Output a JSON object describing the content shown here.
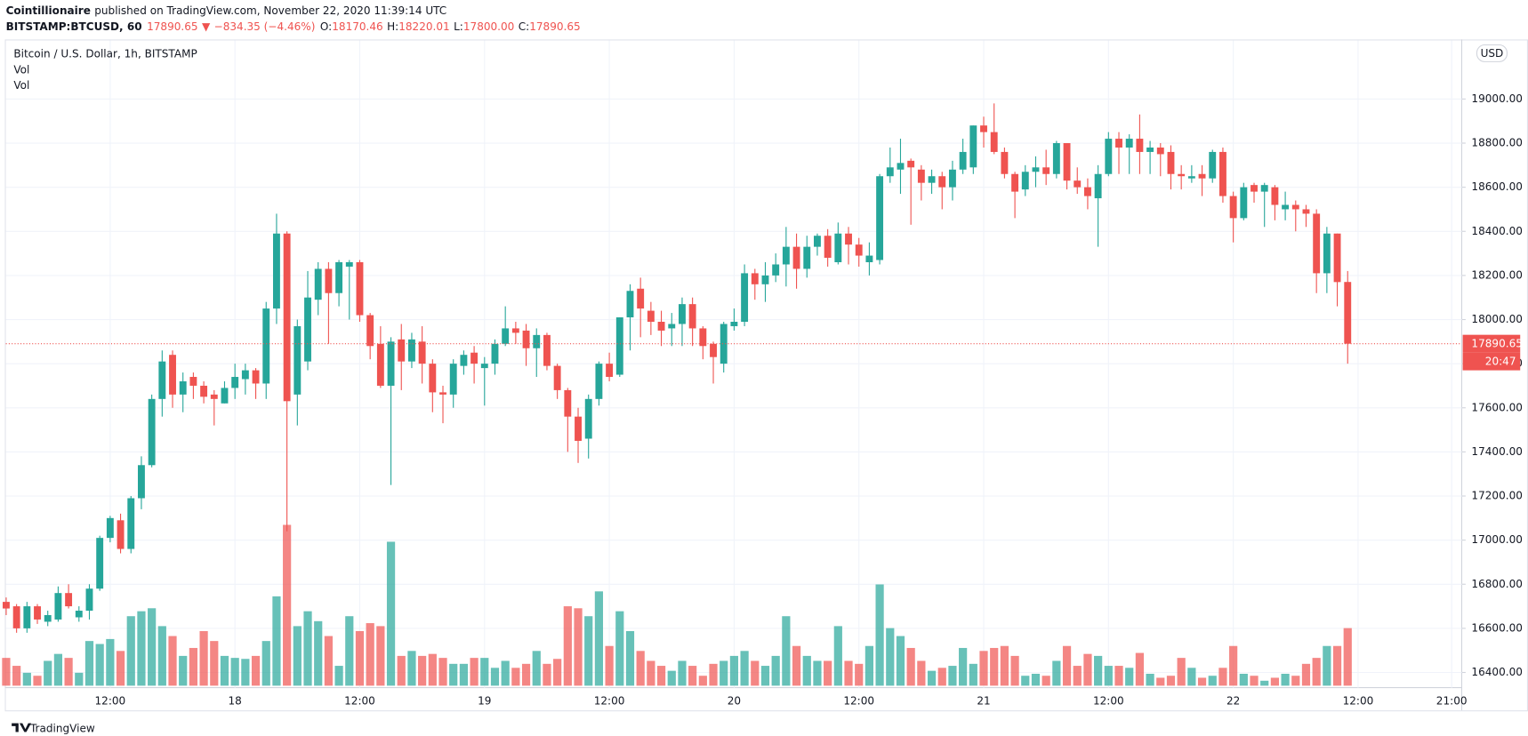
{
  "header": {
    "publisher": "Cointillionaire",
    "published": "published on TradingView.com, November 22, 2020 11:39:14 UTC",
    "symbol": "BITSTAMP:BTCUSD, 60",
    "last": "17890.65",
    "arrow": "▼",
    "change": "−834.35 (−4.46%)",
    "ohlc": [
      {
        "label": "O:",
        "value": "18170.46"
      },
      {
        "label": "H:",
        "value": "18220.01"
      },
      {
        "label": "L:",
        "value": "17800.00"
      },
      {
        "label": "C:",
        "value": "17890.65"
      }
    ]
  },
  "footer": "TradingView",
  "chart_data": {
    "type": "candlestick",
    "title": "Bitcoin / U.S. Dollar, 1h, BITSTAMP",
    "indicators": [
      "Vol",
      "Vol"
    ],
    "currency": "USD",
    "countdown": "20:47",
    "up_color": "#26a69a",
    "down_color": "#ef5350",
    "grid": true,
    "categories": [
      null,
      null,
      null,
      null,
      null,
      null,
      null,
      null,
      null,
      null,
      "12:00",
      null,
      null,
      null,
      null,
      null,
      null,
      null,
      null,
      null,
      null,
      null,
      "18",
      null,
      null,
      null,
      null,
      null,
      null,
      null,
      null,
      null,
      null,
      null,
      "12:00",
      null,
      null,
      null,
      null,
      null,
      null,
      null,
      null,
      null,
      null,
      null,
      "19",
      null,
      null,
      null,
      null,
      null,
      null,
      null,
      null,
      null,
      null,
      null,
      "12:00",
      null,
      null,
      null,
      null,
      null,
      null,
      null,
      null,
      null,
      null,
      null,
      "20",
      null,
      null,
      null,
      null,
      null,
      null,
      null,
      null,
      null,
      null,
      null,
      "12:00",
      null,
      null,
      null,
      null,
      null,
      null,
      null,
      null,
      null,
      null,
      null,
      "21",
      null,
      null,
      null,
      null,
      null,
      null,
      null,
      null,
      null,
      null,
      null,
      "12:00",
      null,
      null,
      null,
      null,
      null,
      null,
      null,
      null,
      null,
      null,
      null,
      "22",
      null,
      null,
      null,
      null,
      null,
      null,
      null,
      null,
      null,
      null,
      null,
      "12:00",
      null,
      null,
      null,
      null,
      null,
      null,
      null,
      null,
      "21:00"
    ],
    "open": [
      16720,
      16700,
      16600,
      16700,
      16630,
      16640,
      16760,
      16650,
      16680,
      16780,
      17010,
      17090,
      16960,
      17190,
      17340,
      17640,
      17840,
      17660,
      17740,
      17700,
      17660,
      17620,
      17690,
      17730,
      17770,
      17710,
      18050,
      18390,
      17660,
      17810,
      18090,
      18230,
      18120,
      18240,
      18260,
      18020,
      17890,
      17700,
      17910,
      17810,
      17900,
      17800,
      17670,
      17660,
      17790,
      17850,
      17780,
      17800,
      17890,
      17960,
      17950,
      17870,
      17930,
      17790,
      17680,
      17560,
      17460,
      17640,
      17800,
      17750,
      18010,
      18140,
      18040,
      17990,
      17960,
      17980,
      18070,
      17960,
      17890,
      17800,
      17970,
      17990,
      18210,
      18160,
      18200,
      18250,
      18330,
      18230,
      18330,
      18380,
      18260,
      18390,
      18340,
      18260,
      18270,
      18650,
      18680,
      18720,
      18680,
      18620,
      18650,
      18600,
      18680,
      18690,
      18880,
      18850,
      18760,
      18660,
      18590,
      18670,
      18690,
      18660,
      18800,
      18630,
      18600,
      18550,
      18660,
      18820,
      18780,
      18820,
      18760,
      18780,
      18760,
      18660,
      18640,
      18660,
      18640,
      18760,
      18560,
      18460,
      18610,
      18580,
      18600,
      18500,
      18520,
      18500,
      18480,
      18210,
      18390,
      18170.46,
      null,
      null,
      null,
      null,
      null,
      null,
      null,
      null,
      null,
      null
    ],
    "high": [
      16740,
      16710,
      16720,
      16710,
      16680,
      16790,
      16800,
      16700,
      16800,
      17020,
      17110,
      17120,
      17200,
      17380,
      17660,
      17860,
      17860,
      17760,
      17760,
      17720,
      17680,
      17720,
      17800,
      17800,
      17780,
      18080,
      18480,
      18400,
      18000,
      18220,
      18260,
      18260,
      18270,
      18270,
      18270,
      18030,
      17970,
      17920,
      17980,
      17940,
      17970,
      17820,
      17700,
      17820,
      17860,
      17880,
      17830,
      17910,
      18060,
      17990,
      17980,
      17960,
      17940,
      17800,
      17690,
      17600,
      17660,
      17810,
      17850,
      18010,
      18160,
      18190,
      18080,
      18040,
      18030,
      18100,
      18100,
      17970,
      17900,
      17990,
      18050,
      18250,
      18230,
      18260,
      18300,
      18420,
      18390,
      18380,
      18390,
      18410,
      18440,
      18420,
      18370,
      18350,
      18660,
      18780,
      18820,
      18730,
      18700,
      18680,
      18670,
      18720,
      18820,
      18880,
      18920,
      18980,
      18780,
      18670,
      18700,
      18740,
      18770,
      18810,
      18800,
      18690,
      18640,
      18700,
      18850,
      18850,
      18840,
      18930,
      18810,
      18800,
      18790,
      18700,
      18700,
      18700,
      18770,
      18780,
      18580,
      18620,
      18620,
      18620,
      18610,
      18580,
      18540,
      18520,
      18500,
      18420,
      18390,
      18220.01,
      null,
      null,
      null,
      null,
      null,
      null,
      null,
      null,
      null,
      null
    ],
    "low": [
      16660,
      16580,
      16580,
      16620,
      16610,
      16630,
      16690,
      16630,
      16640,
      16770,
      16990,
      16940,
      16940,
      17140,
      17330,
      17560,
      17600,
      17580,
      17640,
      17620,
      17520,
      17620,
      17640,
      17660,
      17640,
      17640,
      17980,
      17040,
      17520,
      17770,
      18020,
      17890,
      18060,
      18000,
      17990,
      17820,
      17690,
      17250,
      17680,
      17780,
      17710,
      17580,
      17530,
      17600,
      17750,
      17710,
      17610,
      17750,
      17880,
      17890,
      17790,
      17740,
      17770,
      17640,
      17400,
      17350,
      17370,
      17610,
      17720,
      17740,
      17860,
      17920,
      17930,
      17880,
      17880,
      17880,
      17880,
      17820,
      17710,
      17760,
      17950,
      17970,
      18090,
      18080,
      18170,
      18150,
      18140,
      18190,
      18290,
      18240,
      18250,
      18250,
      18240,
      18200,
      18250,
      18620,
      18570,
      18430,
      18540,
      18570,
      18500,
      18540,
      18660,
      18660,
      18780,
      18750,
      18640,
      18460,
      18560,
      18600,
      18610,
      18640,
      18590,
      18570,
      18500,
      18330,
      18650,
      18660,
      18660,
      18660,
      18660,
      18650,
      18590,
      18590,
      18620,
      18560,
      18620,
      18530,
      18350,
      18450,
      18530,
      18420,
      18450,
      18450,
      18400,
      18420,
      18120,
      18120,
      18060,
      17800,
      null,
      null,
      null,
      null,
      null,
      null,
      null,
      null,
      null,
      null
    ],
    "close": [
      16690,
      16600,
      16700,
      16640,
      16660,
      16760,
      16700,
      16680,
      16780,
      17010,
      17100,
      16960,
      17190,
      17340,
      17640,
      17810,
      17660,
      17720,
      17700,
      17650,
      17640,
      17690,
      17740,
      17770,
      17710,
      18050,
      18390,
      17630,
      17970,
      18100,
      18230,
      18120,
      18260,
      18260,
      18020,
      17880,
      17700,
      17900,
      17810,
      17910,
      17800,
      17670,
      17660,
      17800,
      17840,
      17800,
      17800,
      17890,
      17960,
      17940,
      17870,
      17930,
      17790,
      17680,
      17560,
      17450,
      17640,
      17800,
      17740,
      18010,
      18130,
      18050,
      17990,
      17950,
      17980,
      18070,
      17960,
      17880,
      17830,
      17980,
      17990,
      18210,
      18160,
      18200,
      18250,
      18330,
      18230,
      18330,
      18380,
      18280,
      18390,
      18340,
      18290,
      18290,
      18650,
      18690,
      18710,
      18690,
      18620,
      18650,
      18600,
      18680,
      18760,
      18880,
      18850,
      18760,
      18660,
      18580,
      18670,
      18690,
      18660,
      18800,
      18630,
      18600,
      18560,
      18660,
      18820,
      18780,
      18820,
      18760,
      18780,
      18750,
      18660,
      18650,
      18650,
      18640,
      18760,
      18560,
      18460,
      18600,
      18580,
      18610,
      18520,
      18520,
      18500,
      18480,
      18210,
      18390,
      18170,
      17890.65,
      null,
      null,
      null,
      null,
      null,
      null,
      null,
      null,
      null,
      null
    ],
    "volume": [
      28,
      20,
      13,
      10,
      25,
      32,
      28,
      13,
      45,
      42,
      47,
      35,
      70,
      75,
      78,
      60,
      50,
      30,
      38,
      55,
      45,
      30,
      28,
      27,
      30,
      45,
      90,
      162,
      60,
      75,
      65,
      50,
      20,
      70,
      55,
      63,
      60,
      145,
      30,
      35,
      30,
      32,
      28,
      22,
      22,
      28,
      28,
      18,
      25,
      18,
      22,
      35,
      22,
      27,
      80,
      78,
      70,
      95,
      40,
      75,
      55,
      35,
      25,
      20,
      15,
      25,
      20,
      10,
      22,
      25,
      30,
      35,
      25,
      20,
      30,
      70,
      40,
      30,
      25,
      25,
      60,
      25,
      22,
      40,
      102,
      58,
      50,
      38,
      25,
      15,
      18,
      20,
      38,
      22,
      35,
      38,
      40,
      30,
      10,
      12,
      10,
      25,
      40,
      20,
      32,
      30,
      20,
      20,
      18,
      33,
      12,
      8,
      10,
      28,
      18,
      8,
      10,
      18,
      40,
      12,
      10,
      5,
      8,
      12,
      10,
      22,
      28,
      40,
      40,
      58,
      null,
      null,
      null,
      null,
      null,
      null,
      null,
      null,
      null,
      null
    ],
    "ylim": [
      16340,
      19270
    ],
    "yticks": [
      {
        "value": 16400,
        "label": "16400.00"
      },
      {
        "value": 16600,
        "label": "16600.00"
      },
      {
        "value": 16800,
        "label": "16800.00"
      },
      {
        "value": 17000,
        "label": "17000.00"
      },
      {
        "value": 17200,
        "label": "17200.00"
      },
      {
        "value": 17400,
        "label": "17400.00"
      },
      {
        "value": 17600,
        "label": "17600.00"
      },
      {
        "value": 17800,
        "label": "17800.00"
      },
      {
        "value": 18000,
        "label": "18000.00"
      },
      {
        "value": 18200,
        "label": "18200.00"
      },
      {
        "value": 18400,
        "label": "18400.00"
      },
      {
        "value": 18600,
        "label": "18600.00"
      },
      {
        "value": 18800,
        "label": "18800.00"
      },
      {
        "value": 19000,
        "label": "19000.00"
      }
    ]
  }
}
